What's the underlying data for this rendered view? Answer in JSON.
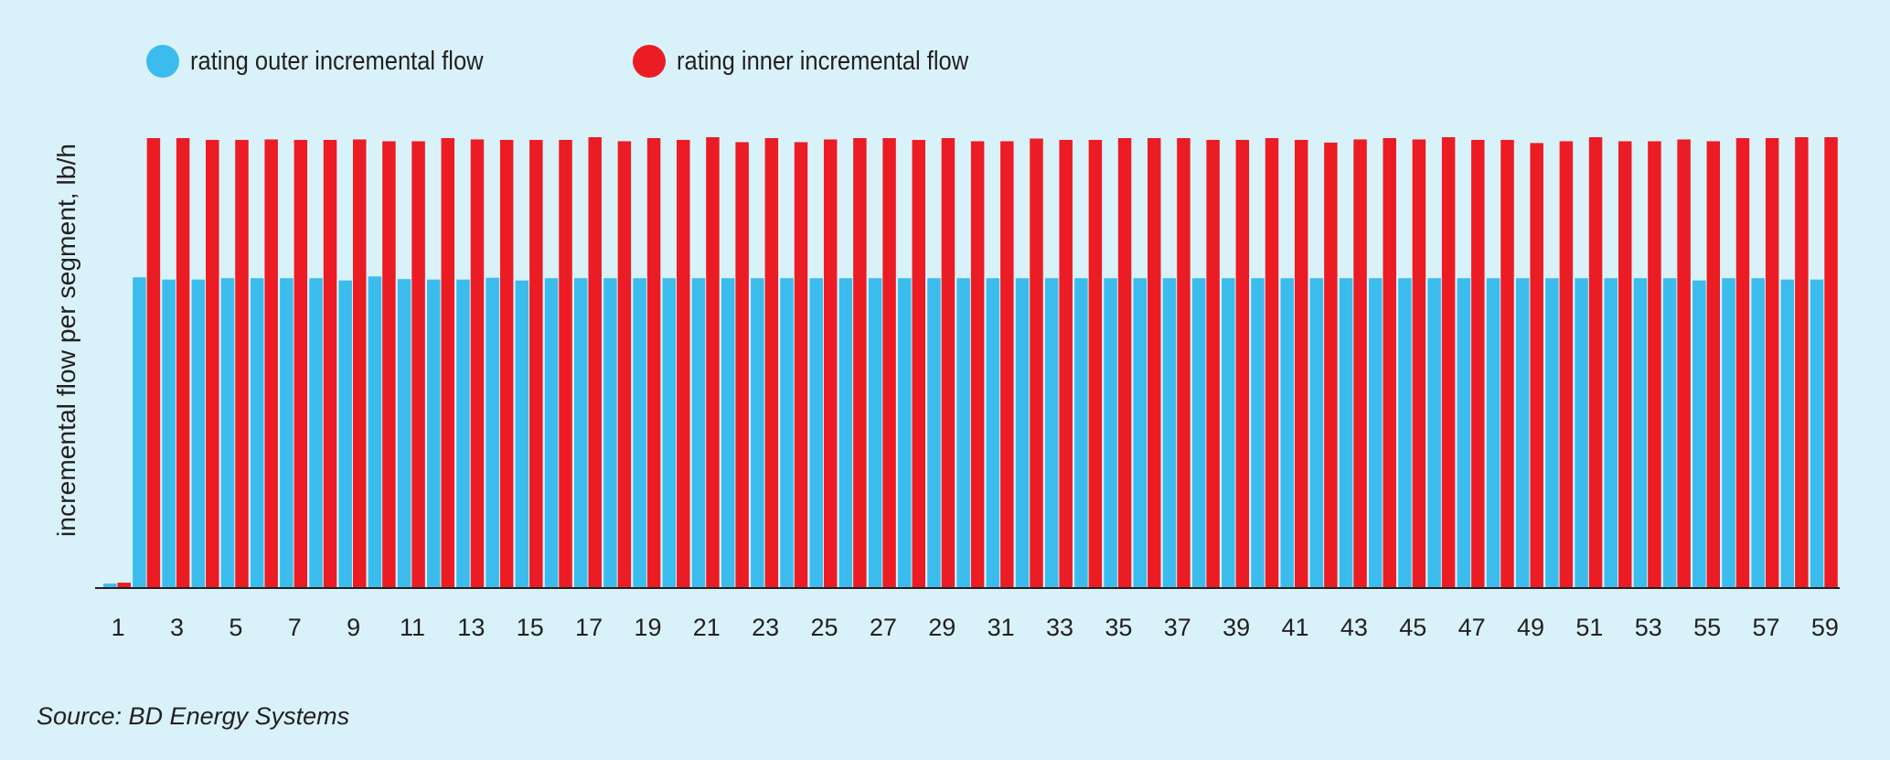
{
  "legend": {
    "outer_label": "rating outer incremental flow",
    "inner_label": "rating inner incremental flow"
  },
  "source": "Source: BD Energy Systems",
  "colors": {
    "background": "#d9f2fa",
    "outer": "#3bbcec",
    "inner": "#ec1c24",
    "text": "#231f20"
  },
  "chart_data": {
    "type": "bar",
    "title": "",
    "xlabel": "",
    "ylabel": "incremental flow per segment, lb/h",
    "y_tick_labels": false,
    "grid": false,
    "legend_position": "top-left",
    "x_tick_labels": [
      "1",
      "3",
      "5",
      "7",
      "9",
      "11",
      "13",
      "15",
      "17",
      "19",
      "21",
      "23",
      "25",
      "27",
      "29",
      "31",
      "33",
      "35",
      "37",
      "39",
      "41",
      "43",
      "45",
      "47",
      "49",
      "51",
      "53",
      "55",
      "57",
      "59"
    ],
    "categories": [
      1,
      2,
      3,
      4,
      5,
      6,
      7,
      8,
      9,
      10,
      11,
      12,
      13,
      14,
      15,
      16,
      17,
      18,
      19,
      20,
      21,
      22,
      23,
      24,
      25,
      26,
      27,
      28,
      29,
      30,
      31,
      32,
      33,
      34,
      35,
      36,
      37,
      38,
      39,
      40,
      41,
      42,
      43,
      44,
      45,
      46,
      47,
      48,
      49,
      50,
      51,
      52,
      53,
      54,
      55,
      56,
      57,
      58,
      59
    ],
    "ylim": [
      0,
      100
    ],
    "series": [
      {
        "name": "rating outer incremental flow",
        "color": "#3bbcec",
        "values": [
          0.8,
          69.0,
          68.5,
          68.5,
          68.8,
          68.8,
          68.8,
          68.8,
          68.3,
          69.2,
          68.6,
          68.5,
          68.5,
          68.9,
          68.3,
          68.8,
          68.8,
          68.8,
          68.8,
          68.8,
          68.8,
          68.8,
          68.8,
          68.8,
          68.8,
          68.8,
          68.8,
          68.8,
          68.8,
          68.8,
          68.8,
          68.8,
          68.8,
          68.8,
          68.8,
          68.8,
          68.8,
          68.8,
          68.8,
          68.8,
          68.8,
          68.8,
          68.8,
          68.8,
          68.8,
          68.8,
          68.8,
          68.8,
          68.8,
          68.8,
          68.8,
          68.8,
          68.8,
          68.8,
          68.3,
          68.8,
          68.8,
          68.5,
          68.5
        ]
      },
      {
        "name": "rating inner incremental flow",
        "color": "#ec1c24",
        "values": [
          1.0,
          100.0,
          100.0,
          99.6,
          99.6,
          99.7,
          99.6,
          99.6,
          99.7,
          99.3,
          99.3,
          100.0,
          99.7,
          99.6,
          99.6,
          99.6,
          100.2,
          99.3,
          100.0,
          99.6,
          100.2,
          99.1,
          100.0,
          99.1,
          99.7,
          100.0,
          100.0,
          99.6,
          100.0,
          99.3,
          99.3,
          99.9,
          99.6,
          99.6,
          100.0,
          100.0,
          100.0,
          99.6,
          99.6,
          100.0,
          99.6,
          99.0,
          99.7,
          100.0,
          99.7,
          100.2,
          99.6,
          99.6,
          98.9,
          99.3,
          100.2,
          99.3,
          99.3,
          99.7,
          99.3,
          100.0,
          100.0,
          100.2,
          100.2
        ]
      }
    ]
  }
}
